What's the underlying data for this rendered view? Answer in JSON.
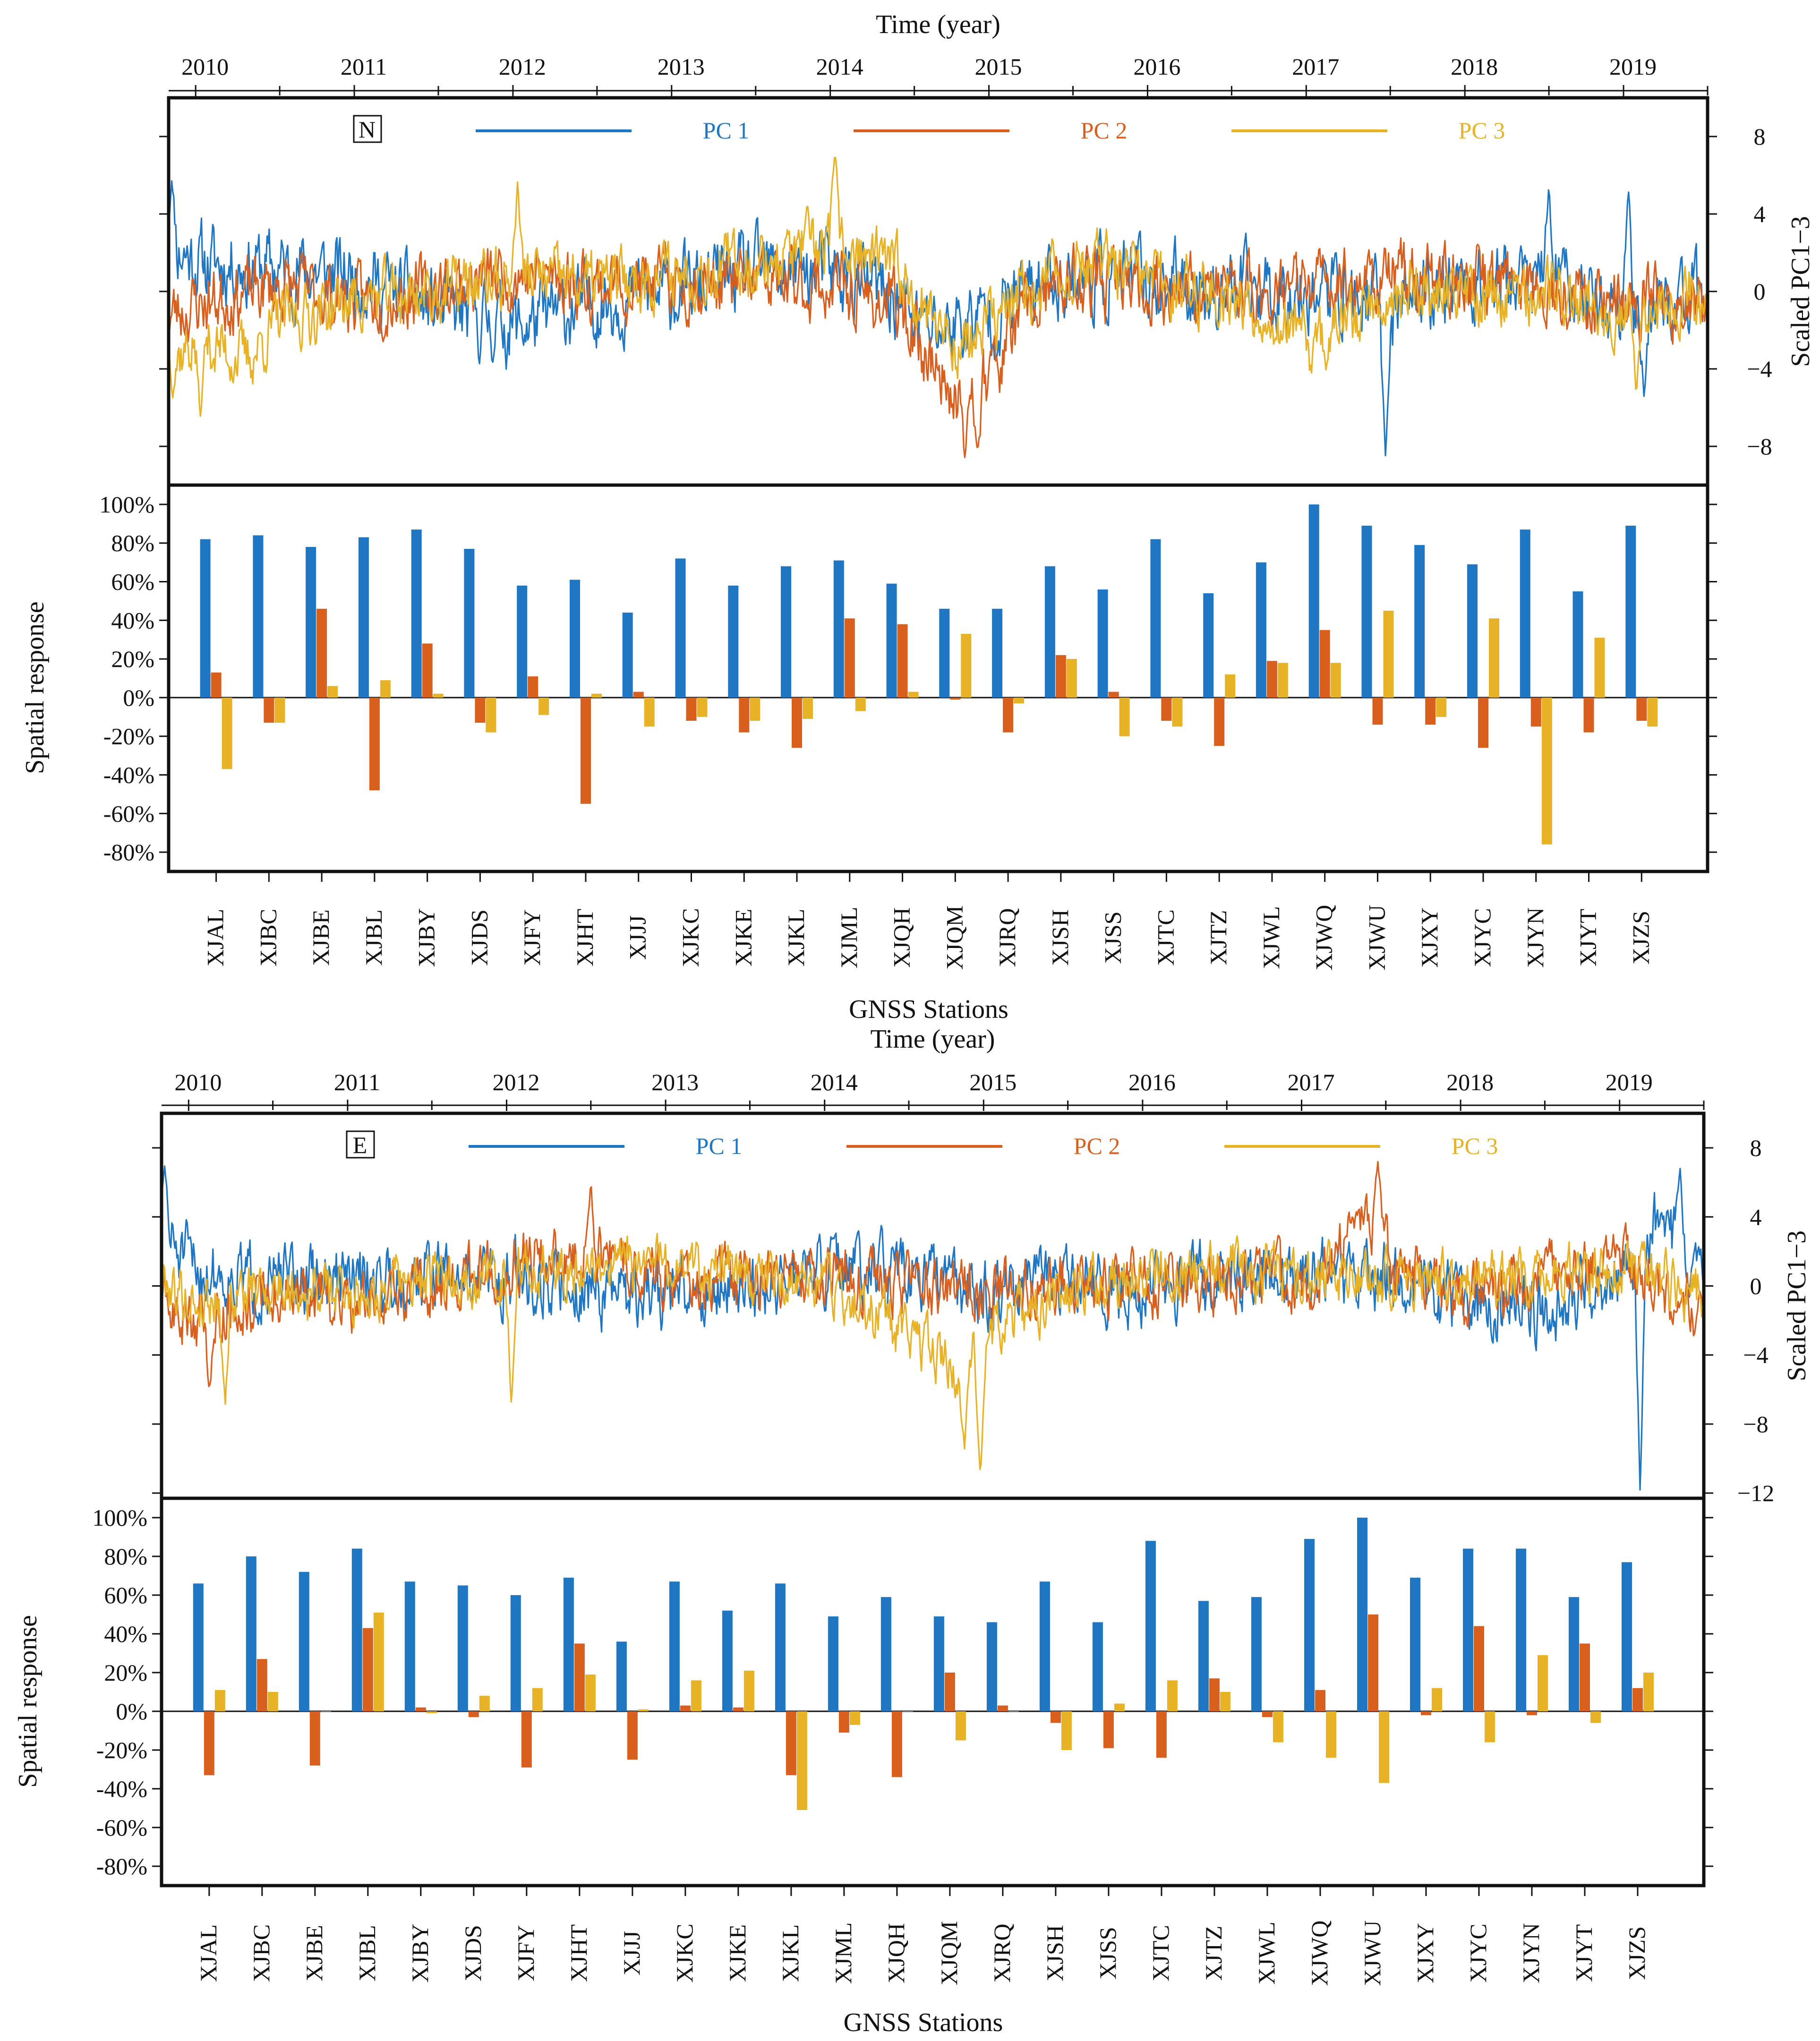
{
  "colors": {
    "pc1": "#1f77c4",
    "pc2": "#d95f1e",
    "pc3": "#e8b227",
    "axis": "#111111"
  },
  "chart_data": [
    {
      "type": "line",
      "panel": "N",
      "title": "Time (year)",
      "ylabel": "Scaled PC1−3",
      "x_ticks": [
        "2010",
        "2011",
        "2012",
        "2013",
        "2014",
        "2015",
        "2016",
        "2017",
        "2018",
        "2019"
      ],
      "xlim": [
        2009.8,
        2019.5
      ],
      "ylim": [
        -10,
        10
      ],
      "y_ticks": [
        8,
        4,
        0,
        -4,
        -8
      ],
      "legend": {
        "tag": "N",
        "entries": [
          "PC 1",
          "PC 2",
          "PC 3"
        ]
      },
      "series": [
        {
          "name": "PC 1",
          "seed": 11,
          "amp": 1.6,
          "anchors": [
            [
              2009.8,
              2.5
            ],
            [
              2010.0,
              1.5
            ],
            [
              2011.0,
              0.8
            ],
            [
              2011.5,
              -1.0
            ],
            [
              2012.0,
              -1.8
            ],
            [
              2012.5,
              -0.5
            ],
            [
              2013.0,
              0.0
            ],
            [
              2013.5,
              1.0
            ],
            [
              2014.0,
              1.0
            ],
            [
              2014.4,
              -0.5
            ],
            [
              2014.6,
              -2.0
            ],
            [
              2015.0,
              -1.2
            ],
            [
              2015.4,
              0.8
            ],
            [
              2016.0,
              0.5
            ],
            [
              2016.5,
              0.0
            ],
            [
              2017.0,
              0.2
            ],
            [
              2017.4,
              -0.5
            ],
            [
              2017.5,
              -1.5
            ],
            [
              2017.6,
              0.0
            ],
            [
              2018.0,
              0.5
            ],
            [
              2018.5,
              0.5
            ],
            [
              2019.0,
              -0.8
            ],
            [
              2019.5,
              -0.5
            ]
          ],
          "spikes": [
            [
              2017.47,
              -8.6
            ],
            [
              2009.82,
              5.8
            ],
            [
              2019.0,
              5.4
            ],
            [
              2018.5,
              5.6
            ],
            [
              2019.1,
              -5.5
            ]
          ]
        },
        {
          "name": "PC 2",
          "seed": 23,
          "amp": 1.4,
          "anchors": [
            [
              2009.8,
              -1.2
            ],
            [
              2010.0,
              -0.6
            ],
            [
              2010.5,
              0.3
            ],
            [
              2011.0,
              -0.5
            ],
            [
              2011.5,
              0.2
            ],
            [
              2012.0,
              0.9
            ],
            [
              2012.5,
              0.4
            ],
            [
              2013.0,
              0.4
            ],
            [
              2013.5,
              0.5
            ],
            [
              2014.0,
              0.2
            ],
            [
              2014.4,
              -0.8
            ],
            [
              2014.6,
              -3.5
            ],
            [
              2014.8,
              -5.5
            ],
            [
              2015.0,
              -4.0
            ],
            [
              2015.2,
              -1.0
            ],
            [
              2015.5,
              0.5
            ],
            [
              2016.0,
              0.2
            ],
            [
              2016.5,
              0.0
            ],
            [
              2017.0,
              0.3
            ],
            [
              2017.5,
              0.8
            ],
            [
              2018.0,
              0.6
            ],
            [
              2018.5,
              0.2
            ],
            [
              2019.0,
              -0.5
            ],
            [
              2019.5,
              -0.6
            ]
          ],
          "spikes": [
            [
              2014.82,
              -8.8
            ],
            [
              2014.9,
              -8.2
            ]
          ]
        },
        {
          "name": "PC 3",
          "seed": 37,
          "amp": 1.3,
          "anchors": [
            [
              2009.8,
              -3.5
            ],
            [
              2010.0,
              -2.5
            ],
            [
              2010.3,
              -3.5
            ],
            [
              2010.5,
              -1.5
            ],
            [
              2011.0,
              -0.4
            ],
            [
              2011.5,
              0.0
            ],
            [
              2012.0,
              0.8
            ],
            [
              2012.5,
              0.4
            ],
            [
              2013.0,
              1.0
            ],
            [
              2013.5,
              1.5
            ],
            [
              2014.0,
              2.5
            ],
            [
              2014.4,
              1.0
            ],
            [
              2014.6,
              -1.0
            ],
            [
              2014.8,
              -3.0
            ],
            [
              2015.0,
              -1.5
            ],
            [
              2015.3,
              0.5
            ],
            [
              2015.6,
              1.5
            ],
            [
              2016.0,
              0.5
            ],
            [
              2016.5,
              -0.2
            ],
            [
              2016.8,
              -1.5
            ],
            [
              2017.0,
              -3.0
            ],
            [
              2017.3,
              -1.0
            ],
            [
              2017.6,
              0.2
            ],
            [
              2018.0,
              -0.2
            ],
            [
              2018.5,
              0.0
            ],
            [
              2019.0,
              -1.0
            ],
            [
              2019.5,
              0.0
            ]
          ],
          "spikes": [
            [
              2014.0,
              7.2
            ],
            [
              2012.0,
              5.8
            ],
            [
              2010.0,
              -6.5
            ],
            [
              2019.05,
              -5.3
            ]
          ]
        }
      ]
    },
    {
      "type": "bar",
      "panel": "N",
      "xlabel": "GNSS Stations",
      "ylabel": "Spatial response",
      "ylim": [
        -90,
        110
      ],
      "y_ticks": [
        100,
        80,
        60,
        40,
        20,
        0,
        -20,
        -40,
        -60,
        -80
      ],
      "y_tick_labels": [
        "100%",
        "80%",
        "60%",
        "40%",
        "20%",
        "0%",
        "-20%",
        "-40%",
        "-60%",
        "-80%"
      ],
      "categories": [
        "XJAL",
        "XJBC",
        "XJBE",
        "XJBL",
        "XJBY",
        "XJDS",
        "XJFY",
        "XJHT",
        "XJJJ",
        "XJKC",
        "XJKE",
        "XJKL",
        "XJML",
        "XJQH",
        "XJQM",
        "XJRQ",
        "XJSH",
        "XJSS",
        "XJTC",
        "XJTZ",
        "XJWL",
        "XJWQ",
        "XJWU",
        "XJXY",
        "XJYC",
        "XJYN",
        "XJYT",
        "XJZS"
      ],
      "series": [
        {
          "name": "PC 1",
          "values": [
            82,
            84,
            78,
            83,
            87,
            77,
            58,
            61,
            44,
            72,
            58,
            68,
            71,
            59,
            46,
            46,
            68,
            56,
            82,
            54,
            70,
            100,
            89,
            79,
            69,
            87,
            55,
            89
          ]
        },
        {
          "name": "PC 2",
          "values": [
            13,
            -13,
            46,
            -48,
            28,
            -13,
            11,
            -55,
            3,
            -12,
            -18,
            -26,
            41,
            38,
            -1,
            -18,
            22,
            3,
            -12,
            -25,
            19,
            35,
            -14,
            -14,
            -26,
            -15,
            -18,
            -12
          ]
        },
        {
          "name": "PC 3",
          "values": [
            -37,
            -13,
            6,
            9,
            2,
            -18,
            -9,
            2,
            -15,
            -10,
            -12,
            -11,
            -7,
            3,
            33,
            -3,
            20,
            -20,
            -15,
            12,
            18,
            18,
            45,
            -10,
            41,
            -76,
            31,
            -15
          ]
        }
      ]
    },
    {
      "type": "line",
      "panel": "E",
      "title": "Time (year)",
      "ylabel": "Scaled PC1−3",
      "x_ticks": [
        "2010",
        "2011",
        "2012",
        "2013",
        "2014",
        "2015",
        "2016",
        "2017",
        "2018",
        "2019"
      ],
      "xlim": [
        2009.8,
        2019.5
      ],
      "ylim": [
        -12.3,
        10
      ],
      "y_ticks": [
        8,
        4,
        0,
        -4,
        -8,
        -12
      ],
      "legend": {
        "tag": "E",
        "entries": [
          "PC 1",
          "PC 2",
          "PC 3"
        ]
      },
      "series": [
        {
          "name": "PC 1",
          "seed": 51,
          "amp": 1.6,
          "anchors": [
            [
              2009.8,
              3.0
            ],
            [
              2010.0,
              1.0
            ],
            [
              2010.5,
              0.2
            ],
            [
              2011.0,
              0.3
            ],
            [
              2011.5,
              0.8
            ],
            [
              2012.0,
              0.5
            ],
            [
              2012.5,
              -0.3
            ],
            [
              2013.0,
              -0.5
            ],
            [
              2013.5,
              0.0
            ],
            [
              2014.0,
              0.8
            ],
            [
              2014.5,
              0.5
            ],
            [
              2015.0,
              -0.5
            ],
            [
              2015.5,
              0.2
            ],
            [
              2016.0,
              0.0
            ],
            [
              2016.5,
              0.5
            ],
            [
              2017.0,
              0.8
            ],
            [
              2017.5,
              0.5
            ],
            [
              2018.0,
              -1.0
            ],
            [
              2018.5,
              -1.5
            ],
            [
              2019.0,
              0.5
            ],
            [
              2019.2,
              3.5
            ],
            [
              2019.4,
              2.0
            ],
            [
              2019.5,
              0.5
            ]
          ],
          "spikes": [
            [
              2019.1,
              -12.2
            ],
            [
              2019.35,
              7.0
            ],
            [
              2009.82,
              7.0
            ]
          ]
        },
        {
          "name": "PC 2",
          "seed": 63,
          "amp": 1.4,
          "anchors": [
            [
              2009.8,
              -1.5
            ],
            [
              2010.0,
              -2.0
            ],
            [
              2010.5,
              -0.5
            ],
            [
              2011.0,
              -1.0
            ],
            [
              2011.5,
              0.2
            ],
            [
              2012.0,
              1.5
            ],
            [
              2012.5,
              1.8
            ],
            [
              2013.0,
              0.8
            ],
            [
              2013.5,
              0.5
            ],
            [
              2014.0,
              0.8
            ],
            [
              2014.5,
              0.0
            ],
            [
              2015.0,
              -0.5
            ],
            [
              2015.5,
              0.5
            ],
            [
              2016.0,
              0.0
            ],
            [
              2016.5,
              0.3
            ],
            [
              2017.0,
              0.5
            ],
            [
              2017.4,
              3.5
            ],
            [
              2017.6,
              1.0
            ],
            [
              2018.0,
              -0.5
            ],
            [
              2018.5,
              0.5
            ],
            [
              2019.0,
              1.5
            ],
            [
              2019.5,
              -1.5
            ]
          ],
          "spikes": [
            [
              2017.45,
              7.2
            ],
            [
              2012.5,
              6.2
            ],
            [
              2010.1,
              -6.0
            ]
          ]
        },
        {
          "name": "PC 3",
          "seed": 79,
          "amp": 1.3,
          "anchors": [
            [
              2009.8,
              0.5
            ],
            [
              2010.0,
              -1.0
            ],
            [
              2010.5,
              0.0
            ],
            [
              2011.0,
              -0.5
            ],
            [
              2011.5,
              0.3
            ],
            [
              2012.0,
              0.8
            ],
            [
              2012.5,
              1.0
            ],
            [
              2013.0,
              1.5
            ],
            [
              2013.5,
              0.5
            ],
            [
              2014.0,
              0.0
            ],
            [
              2014.5,
              -3.0
            ],
            [
              2014.8,
              -5.0
            ],
            [
              2015.0,
              -2.5
            ],
            [
              2015.5,
              -0.5
            ],
            [
              2016.0,
              0.5
            ],
            [
              2016.5,
              1.0
            ],
            [
              2017.0,
              0.5
            ],
            [
              2017.5,
              0.5
            ],
            [
              2018.0,
              0.3
            ],
            [
              2018.5,
              0.5
            ],
            [
              2019.0,
              1.0
            ],
            [
              2019.5,
              -0.5
            ]
          ],
          "spikes": [
            [
              2014.95,
              -11.2
            ],
            [
              2014.85,
              -9.5
            ],
            [
              2012.0,
              -7.0
            ],
            [
              2010.2,
              -7.0
            ]
          ]
        }
      ]
    },
    {
      "type": "bar",
      "panel": "E",
      "xlabel": "GNSS Stations",
      "ylabel": "Spatial response",
      "ylim": [
        -90,
        110
      ],
      "y_ticks": [
        100,
        80,
        60,
        40,
        20,
        0,
        -20,
        -40,
        -60,
        -80
      ],
      "y_tick_labels": [
        "100%",
        "80%",
        "60%",
        "40%",
        "20%",
        "0%",
        "-20%",
        "-40%",
        "-60%",
        "-80%"
      ],
      "categories": [
        "XJAL",
        "XJBC",
        "XJBE",
        "XJBL",
        "XJBY",
        "XJDS",
        "XJFY",
        "XJHT",
        "XJJJ",
        "XJKC",
        "XJKE",
        "XJKL",
        "XJML",
        "XJQH",
        "XJQM",
        "XJRQ",
        "XJSH",
        "XJSS",
        "XJTC",
        "XJTZ",
        "XJWL",
        "XJWQ",
        "XJWU",
        "XJXY",
        "XJYC",
        "XJYN",
        "XJYT",
        "XJZS"
      ],
      "series": [
        {
          "name": "PC 1",
          "values": [
            66,
            80,
            72,
            84,
            67,
            65,
            60,
            69,
            36,
            67,
            52,
            66,
            49,
            59,
            49,
            46,
            67,
            46,
            88,
            57,
            59,
            89,
            100,
            69,
            84,
            84,
            59,
            77
          ]
        },
        {
          "name": "PC 2",
          "values": [
            -33,
            27,
            -28,
            43,
            2,
            -3,
            -29,
            35,
            -25,
            3,
            2,
            -33,
            -11,
            -34,
            20,
            3,
            -6,
            -19,
            -24,
            17,
            -3,
            11,
            50,
            -2,
            44,
            -2,
            35,
            12
          ]
        },
        {
          "name": "PC 3",
          "values": [
            11,
            10,
            0,
            51,
            -1,
            8,
            12,
            19,
            1,
            16,
            21,
            -51,
            -7,
            0,
            -15,
            0,
            -20,
            4,
            16,
            10,
            -16,
            -24,
            -37,
            12,
            -16,
            29,
            -6,
            20
          ]
        }
      ]
    }
  ]
}
